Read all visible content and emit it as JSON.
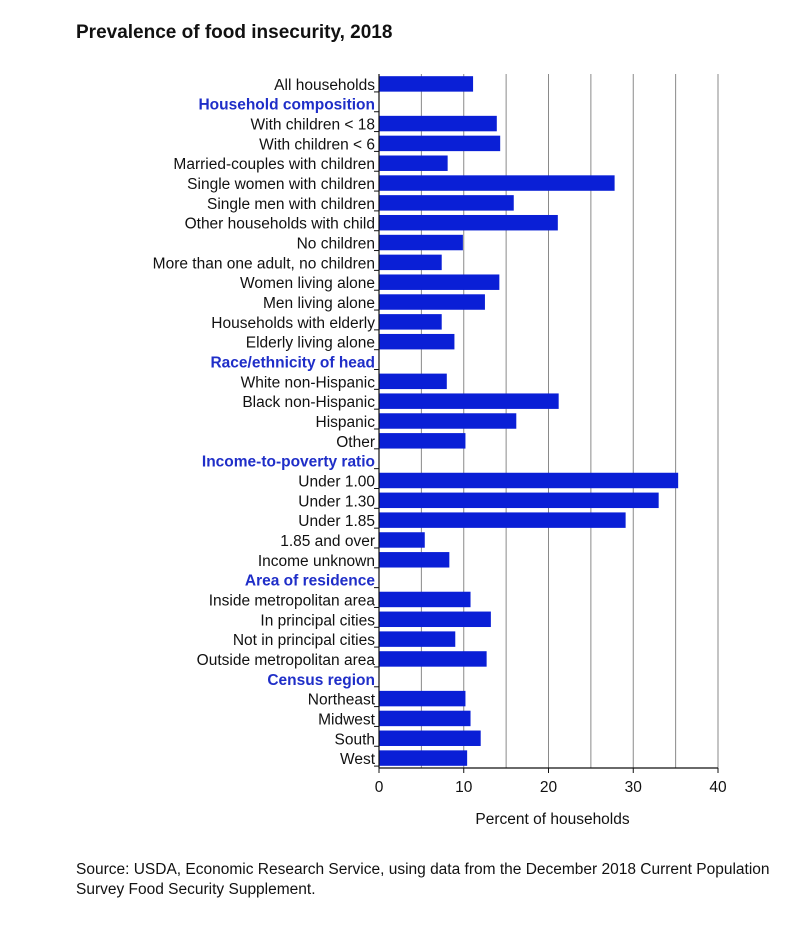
{
  "chart_data": {
    "type": "bar",
    "orientation": "horizontal",
    "title": "Prevalence of food insecurity, 2018",
    "xlabel": "Percent of households",
    "ylabel": "",
    "xlim": [
      0,
      40
    ],
    "xticks": [
      "0",
      "10",
      "20",
      "30",
      "40"
    ],
    "grid": true,
    "bar_color": "#0a1fd6",
    "header_color": "#1f2ec8",
    "rows": [
      {
        "label": "All households",
        "value": 11.1
      },
      {
        "label": "Household composition",
        "header": true
      },
      {
        "label": "With children < 18",
        "value": 13.9
      },
      {
        "label": "With children < 6",
        "value": 14.3
      },
      {
        "label": "Married-couples with children",
        "value": 8.1
      },
      {
        "label": "Single women with children",
        "value": 27.8
      },
      {
        "label": "Single men with children",
        "value": 15.9
      },
      {
        "label": "Other households with child",
        "value": 21.1
      },
      {
        "label": "No children",
        "value": 9.9
      },
      {
        "label": "More than one adult, no children",
        "value": 7.4
      },
      {
        "label": "Women living alone",
        "value": 14.2
      },
      {
        "label": "Men living alone",
        "value": 12.5
      },
      {
        "label": "Households with elderly",
        "value": 7.4
      },
      {
        "label": "Elderly living alone",
        "value": 8.9
      },
      {
        "label": "Race/ethnicity of head",
        "header": true
      },
      {
        "label": "White non-Hispanic",
        "value": 8.0
      },
      {
        "label": "Black non-Hispanic",
        "value": 21.2
      },
      {
        "label": "Hispanic",
        "value": 16.2
      },
      {
        "label": "Other",
        "value": 10.2
      },
      {
        "label": "Income-to-poverty ratio",
        "header": true
      },
      {
        "label": "Under 1.00",
        "value": 35.3
      },
      {
        "label": "Under 1.30",
        "value": 33.0
      },
      {
        "label": "Under 1.85",
        "value": 29.1
      },
      {
        "label": "1.85 and over",
        "value": 5.4
      },
      {
        "label": "Income unknown",
        "value": 8.3
      },
      {
        "label": "Area of residence",
        "header": true
      },
      {
        "label": "Inside metropolitan area",
        "value": 10.8
      },
      {
        "label": "In principal cities",
        "value": 13.2
      },
      {
        "label": "Not in principal cities",
        "value": 9.0
      },
      {
        "label": "Outside metropolitan area",
        "value": 12.7
      },
      {
        "label": "Census region",
        "header": true
      },
      {
        "label": "Northeast",
        "value": 10.2
      },
      {
        "label": "Midwest",
        "value": 10.8
      },
      {
        "label": "South",
        "value": 12.0
      },
      {
        "label": "West",
        "value": 10.4
      }
    ],
    "source": "Source: USDA, Economic Research Service, using data from the December 2018 Current Population Survey Food Security Supplement."
  }
}
